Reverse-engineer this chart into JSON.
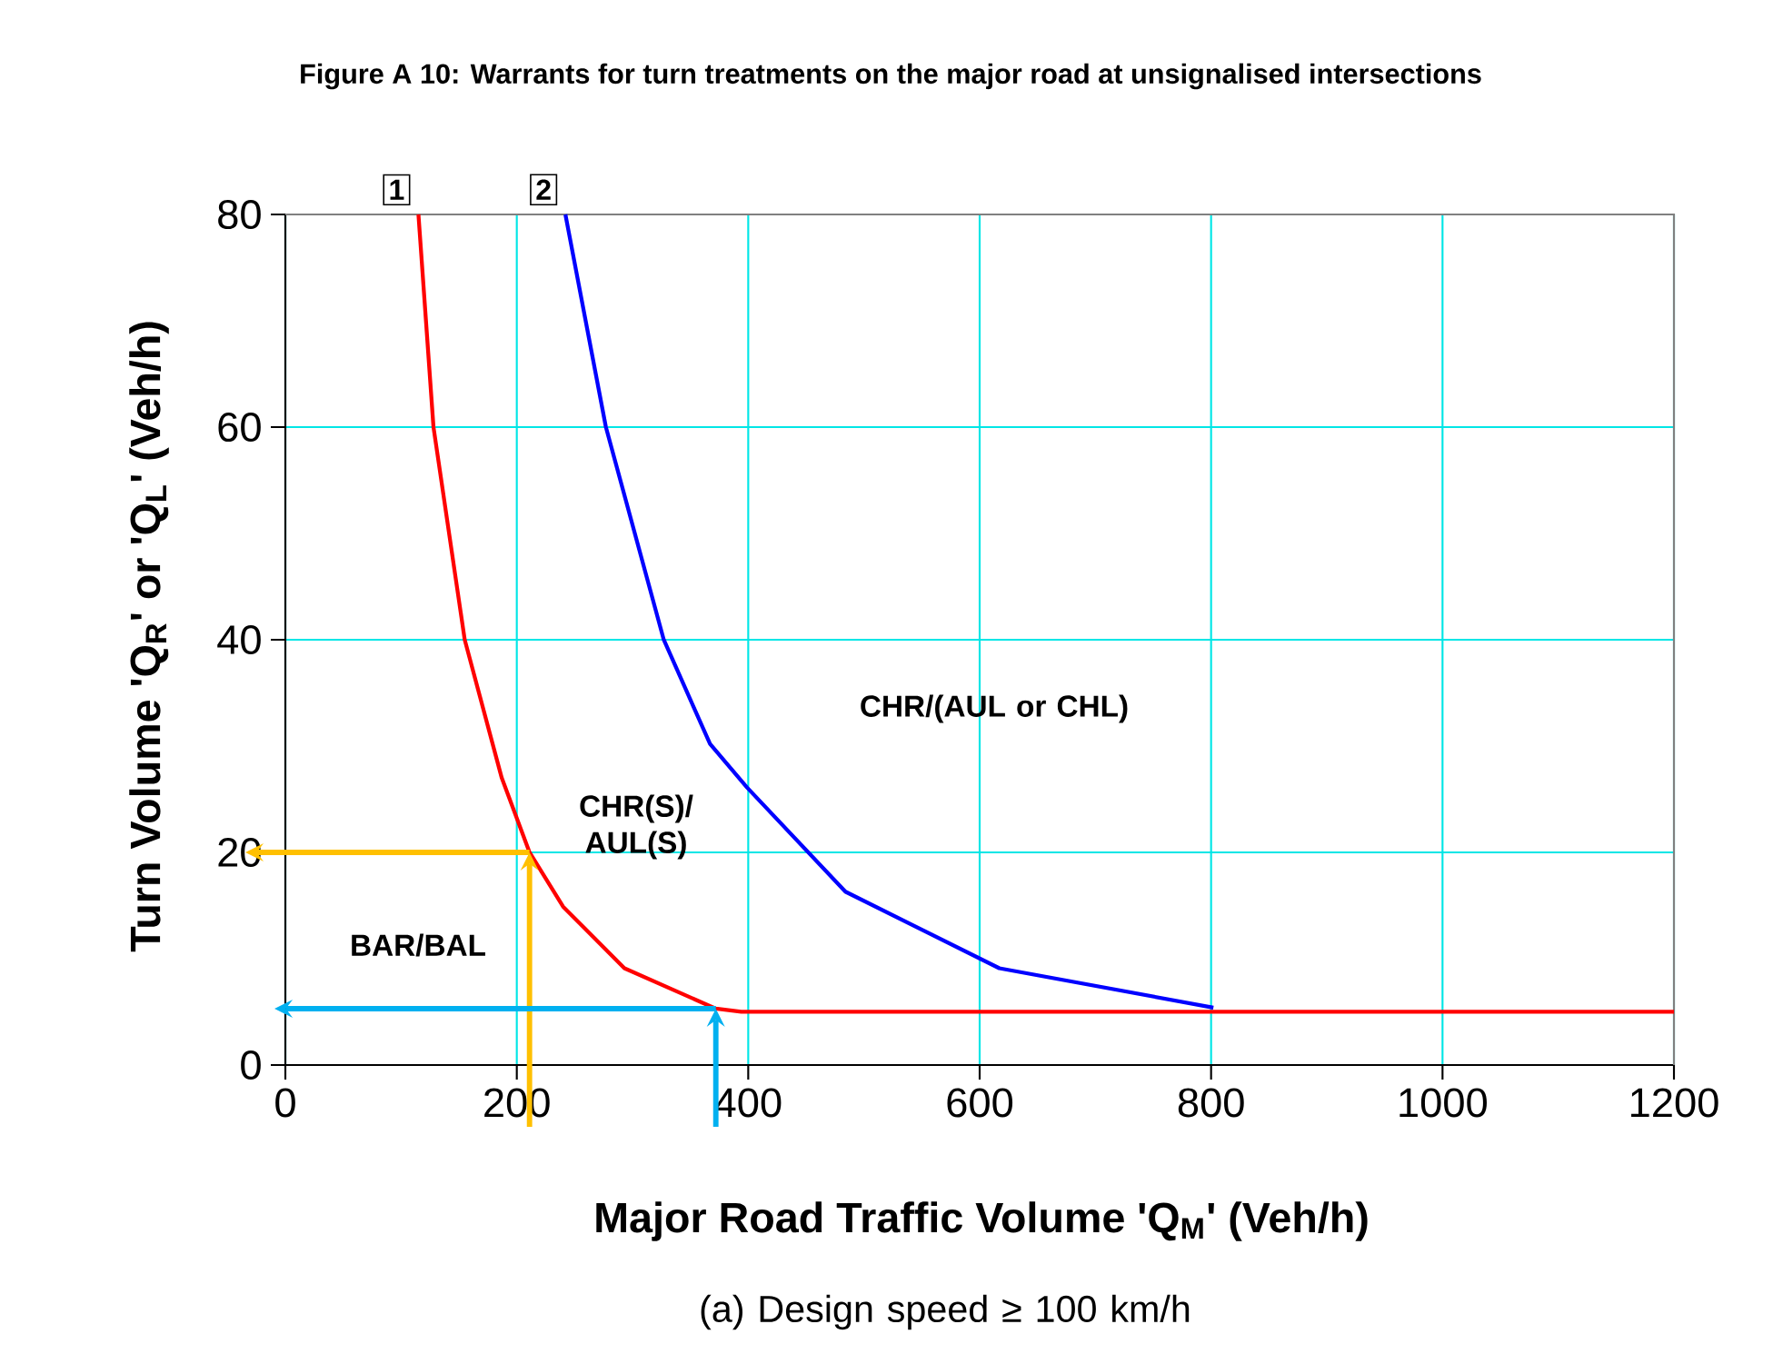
{
  "chart_data": {
    "type": "line",
    "title": "Figure A 10:  Warrants for turn treatments on the major road at unsignalised intersections",
    "xlabel": "Major Road Traffic Volume 'Q$_{M}$' (Veh/h)",
    "ylabel": "Turn Volume 'Q$_{R}$' or 'Q$_{L}$' (Veh/h)",
    "xlim": [
      0,
      1200
    ],
    "ylim": [
      0,
      80
    ],
    "xticks": [
      0,
      200,
      400,
      600,
      800,
      1000,
      1200
    ],
    "yticks": [
      0,
      20,
      40,
      60,
      80
    ],
    "grid": true,
    "marker": "none",
    "line_style": "solid",
    "series": [
      {
        "name": "1",
        "color": "#ff0000",
        "x": [
          115,
          128,
          155,
          187,
          211,
          240,
          293,
          372,
          394,
          1200
        ],
        "values": [
          80,
          60,
          40,
          27,
          20,
          14.9,
          9.1,
          5.3,
          5,
          5
        ]
      },
      {
        "name": "2",
        "color": "#0000ff",
        "x": [
          242,
          277,
          327,
          367,
          399,
          484,
          617,
          802
        ],
        "values": [
          80,
          60,
          40,
          30.2,
          26.1,
          16.3,
          9.1,
          5.4
        ]
      }
    ],
    "annotations": [
      "BAR/BAL",
      "CHR(S)/ AUL(S)",
      "CHR/(AUL or CHL)",
      "(a)  Design speed ≥ 100 km/h"
    ]
  }
}
